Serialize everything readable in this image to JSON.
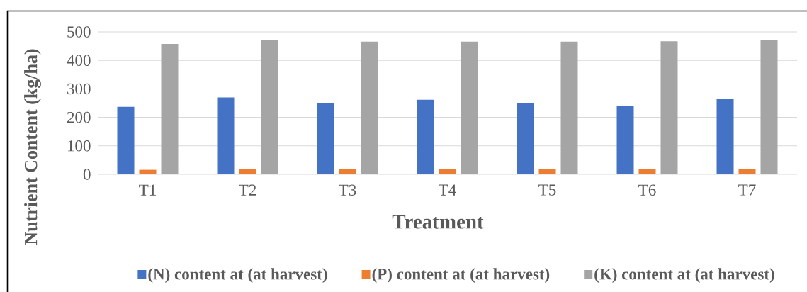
{
  "chart_data": {
    "type": "bar",
    "xlabel": "Treatment",
    "ylabel": "Nutrient Content (kg/ha)",
    "categories": [
      "T1",
      "T2",
      "T3",
      "T4",
      "T5",
      "T6",
      "T7"
    ],
    "series": [
      {
        "name": "(N) content at (at harvest)",
        "color": "#4472c4",
        "values": [
          237,
          270,
          250,
          262,
          249,
          240,
          266
        ]
      },
      {
        "name": "(P) content at (at harvest)",
        "color": "#ed7d31",
        "values": [
          16,
          19,
          18,
          18,
          19,
          18,
          18
        ]
      },
      {
        "name": "(K) content at (at harvest)",
        "color": "#a5a5a5",
        "values": [
          458,
          470,
          466,
          466,
          466,
          467,
          470
        ]
      }
    ],
    "ylim": [
      0,
      500
    ],
    "yticks": [
      0,
      100,
      200,
      300,
      400,
      500
    ],
    "grid": "y",
    "legend": "bottom"
  }
}
